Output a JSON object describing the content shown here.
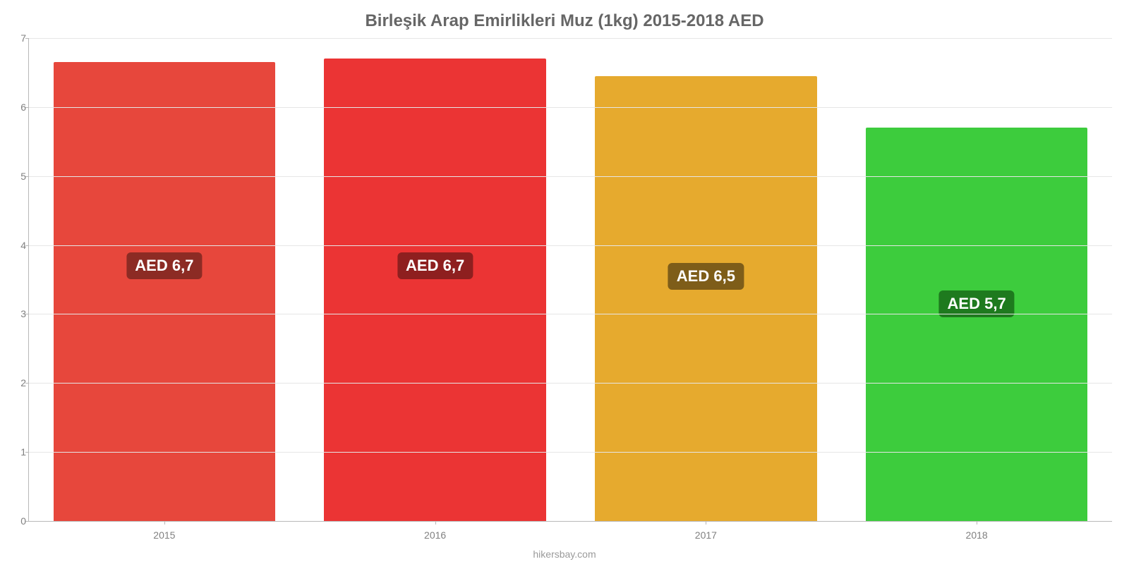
{
  "chart": {
    "type": "bar",
    "title": "Birleşik Arap Emirlikleri Muz (1kg) 2015-2018 AED",
    "title_color": "#666666",
    "title_fontsize": 24,
    "background_color": "#ffffff",
    "grid_color": "#e6e6e6",
    "axis_color": "#b8b8b8",
    "tick_label_color": "#808080",
    "tick_label_fontsize": 14,
    "y": {
      "min": 0,
      "max": 7,
      "step": 1
    },
    "bar_width_pct": 82,
    "data_label_fontsize": 22,
    "data_label_text_color": "#ffffff",
    "footer": "hikersbay.com",
    "footer_color": "#9a9a9a",
    "bars": [
      {
        "category": "2015",
        "value": 6.65,
        "label": "AED 6,7",
        "color": "#e7473c",
        "label_bg": "#8c2b24",
        "label_y": 3.7
      },
      {
        "category": "2016",
        "value": 6.7,
        "label": "AED 6,7",
        "color": "#eb3434",
        "label_bg": "#8e1f1f",
        "label_y": 3.7
      },
      {
        "category": "2017",
        "value": 6.45,
        "label": "AED 6,5",
        "color": "#e6aa2e",
        "label_bg": "#7e5d19",
        "label_y": 3.55
      },
      {
        "category": "2018",
        "value": 5.7,
        "label": "AED 5,7",
        "color": "#3dcc3d",
        "label_bg": "#1e7a1e",
        "label_y": 3.15
      }
    ]
  }
}
